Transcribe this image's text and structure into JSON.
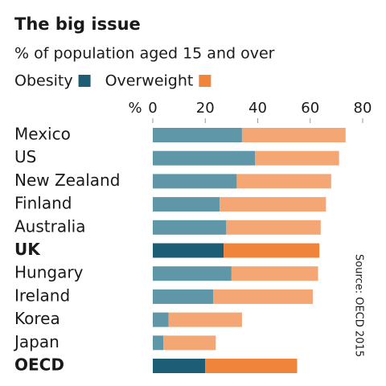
{
  "chart_data": {
    "type": "stacked-barh",
    "title": "The big issue",
    "subtitle": "% of population aged 15 and over",
    "x_axis_label": "%",
    "source": "Source: OECD 2015",
    "categories": [
      "Mexico",
      "US",
      "New Zealand",
      "Finland",
      "Australia",
      "UK",
      "Hungary",
      "Ireland",
      "Korea",
      "Japan",
      "OECD"
    ],
    "bold": [
      false,
      false,
      false,
      false,
      false,
      true,
      false,
      false,
      false,
      false,
      true
    ],
    "series": [
      {
        "name": "Obesity",
        "color": "#5f96a8",
        "highlight_color": "#1d5d75",
        "values": [
          34,
          39,
          32,
          25.5,
          28,
          27,
          30,
          23,
          6,
          4,
          20
        ]
      },
      {
        "name": "Overweight",
        "color": "#f4a774",
        "highlight_color": "#f0843a",
        "values": [
          39.5,
          32,
          36,
          40.5,
          36,
          36.5,
          33,
          38,
          28,
          20,
          35
        ]
      }
    ],
    "xlim": [
      0,
      80
    ],
    "xticks": [
      0,
      20,
      40,
      60,
      80
    ]
  }
}
